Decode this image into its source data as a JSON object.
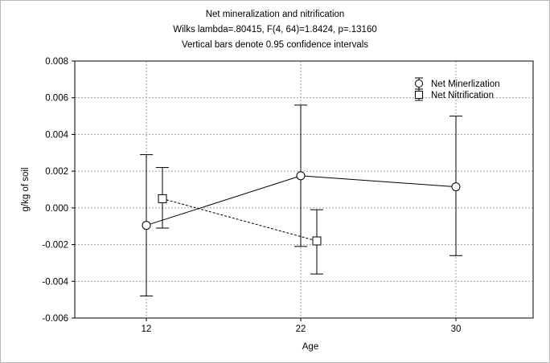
{
  "chart_data": {
    "type": "line",
    "title": "Net mineralization and nitrification",
    "subtitle_lines": [
      "Wilks lambda=.80415, F(4, 64)=1.8424, p=.13160",
      "Vertical bars denote 0.95 confidence intervals"
    ],
    "xlabel": "Age",
    "ylabel": "g/kg of soil",
    "categories": [
      "12",
      "22",
      "30"
    ],
    "ylim": [
      -0.006,
      0.008
    ],
    "yticks": [
      -0.006,
      -0.004,
      -0.002,
      0.0,
      0.002,
      0.004,
      0.006,
      0.008
    ],
    "ytick_labels": [
      "-0.006",
      "-0.004",
      "-0.002",
      "0.000",
      "0.002",
      "0.004",
      "0.006",
      "0.008"
    ],
    "grid": true,
    "legend_position": "top-right",
    "series": [
      {
        "name": "Net Minerlization",
        "marker": "circle",
        "line_style": "solid",
        "x": [
          "12",
          "22",
          "30"
        ],
        "values": [
          -0.00095,
          0.00175,
          0.00115
        ],
        "ci_lower": [
          -0.0048,
          -0.0021,
          -0.0026
        ],
        "ci_upper": [
          0.0029,
          0.0056,
          0.005
        ]
      },
      {
        "name": "Net Nitrification",
        "marker": "square",
        "line_style": "dashed",
        "x": [
          "12",
          "22"
        ],
        "values": [
          0.0005,
          -0.0018
        ],
        "ci_lower": [
          -0.0011,
          -0.0036
        ],
        "ci_upper": [
          0.0022,
          -0.0001
        ]
      }
    ]
  }
}
